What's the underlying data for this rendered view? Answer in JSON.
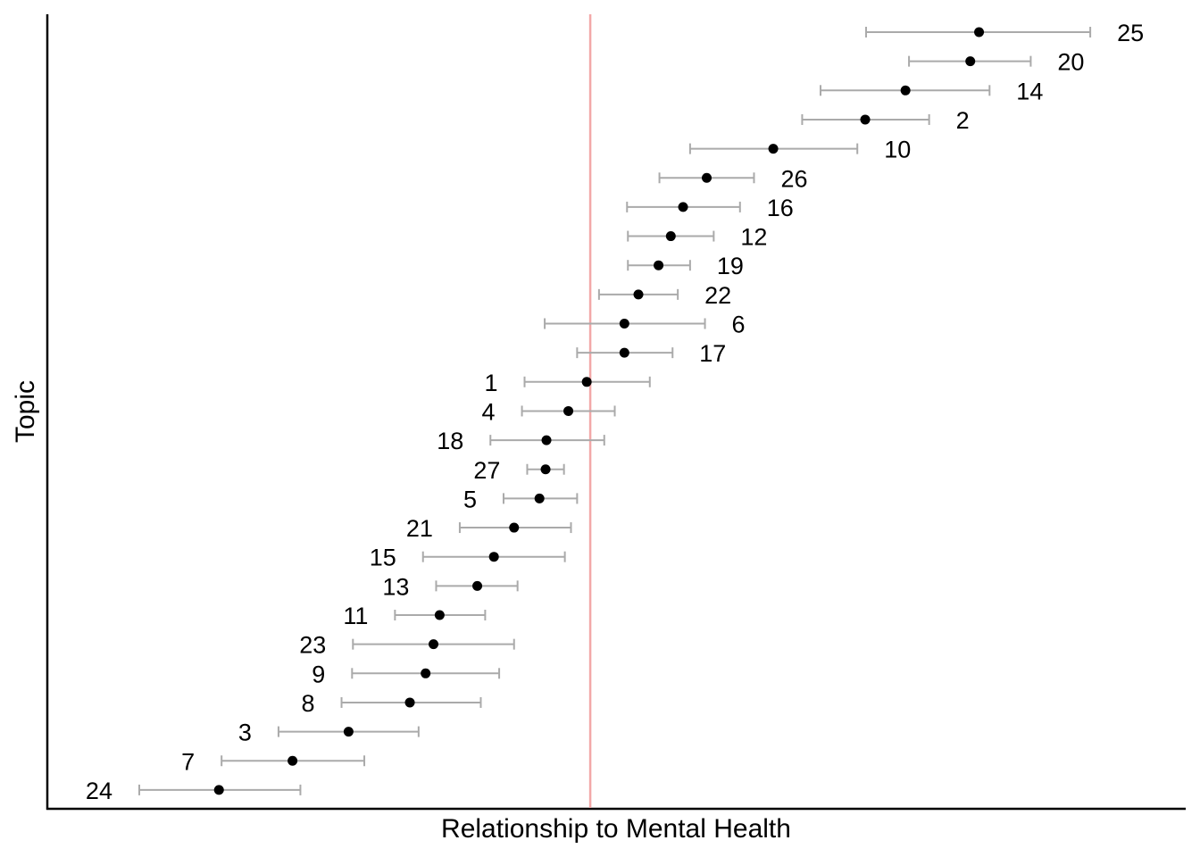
{
  "chart_data": {
    "type": "scatter",
    "xlabel": "Relationship to Mental Health",
    "ylabel": "Topic",
    "xlim": [
      -0.62,
      0.68
    ],
    "reference_line_x": 0.0,
    "reference_line_color": "#f2a8a8",
    "point_color": "#000000",
    "errorbar_color": "#aaaaaa",
    "grid": false,
    "points": [
      {
        "topic": "25",
        "estimate": 0.444,
        "low": 0.315,
        "high": 0.571
      },
      {
        "topic": "20",
        "estimate": 0.434,
        "low": 0.364,
        "high": 0.503
      },
      {
        "topic": "14",
        "estimate": 0.36,
        "low": 0.263,
        "high": 0.456
      },
      {
        "topic": "2",
        "estimate": 0.314,
        "low": 0.242,
        "high": 0.387
      },
      {
        "topic": "10",
        "estimate": 0.209,
        "low": 0.114,
        "high": 0.305
      },
      {
        "topic": "26",
        "estimate": 0.133,
        "low": 0.079,
        "high": 0.187
      },
      {
        "topic": "16",
        "estimate": 0.106,
        "low": 0.042,
        "high": 0.171
      },
      {
        "topic": "12",
        "estimate": 0.092,
        "low": 0.043,
        "high": 0.141
      },
      {
        "topic": "19",
        "estimate": 0.078,
        "low": 0.043,
        "high": 0.114
      },
      {
        "topic": "22",
        "estimate": 0.055,
        "low": 0.01,
        "high": 0.1
      },
      {
        "topic": "6",
        "estimate": 0.039,
        "low": -0.052,
        "high": 0.131
      },
      {
        "topic": "17",
        "estimate": 0.039,
        "low": -0.015,
        "high": 0.094
      },
      {
        "topic": "1",
        "estimate": -0.004,
        "low": -0.075,
        "high": 0.068
      },
      {
        "topic": "4",
        "estimate": -0.025,
        "low": -0.078,
        "high": 0.028
      },
      {
        "topic": "18",
        "estimate": -0.05,
        "low": -0.114,
        "high": 0.016
      },
      {
        "topic": "27",
        "estimate": -0.051,
        "low": -0.072,
        "high": -0.03
      },
      {
        "topic": "5",
        "estimate": -0.058,
        "low": -0.099,
        "high": -0.015
      },
      {
        "topic": "21",
        "estimate": -0.087,
        "low": -0.149,
        "high": -0.022
      },
      {
        "topic": "15",
        "estimate": -0.11,
        "low": -0.191,
        "high": -0.029
      },
      {
        "topic": "13",
        "estimate": -0.129,
        "low": -0.176,
        "high": -0.083
      },
      {
        "topic": "11",
        "estimate": -0.172,
        "low": -0.223,
        "high": -0.12
      },
      {
        "topic": "23",
        "estimate": -0.179,
        "low": -0.271,
        "high": -0.087
      },
      {
        "topic": "9",
        "estimate": -0.188,
        "low": -0.272,
        "high": -0.104
      },
      {
        "topic": "8",
        "estimate": -0.206,
        "low": -0.284,
        "high": -0.125
      },
      {
        "topic": "3",
        "estimate": -0.276,
        "low": -0.356,
        "high": -0.196
      },
      {
        "topic": "7",
        "estimate": -0.34,
        "low": -0.421,
        "high": -0.258
      },
      {
        "topic": "24",
        "estimate": -0.424,
        "low": -0.515,
        "high": -0.331
      }
    ]
  }
}
